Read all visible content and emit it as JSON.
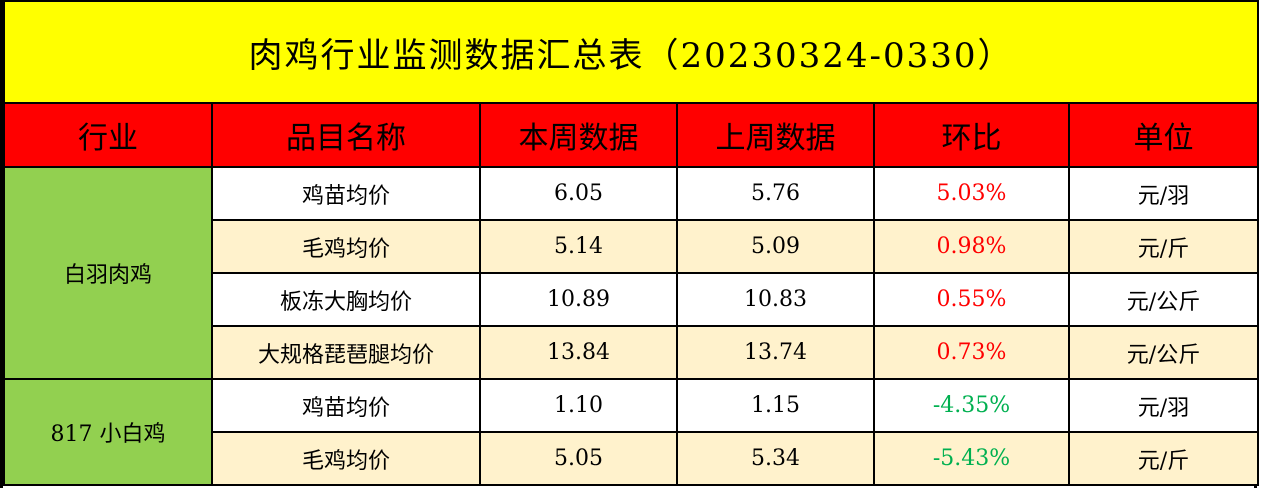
{
  "title": "肉鸡行业监测数据汇总表（20230324-0330）",
  "headers": [
    "行业",
    "品目名称",
    "本周数据",
    "上周数据",
    "环比",
    "单位"
  ],
  "colors": {
    "title_bg": "#FFFF00",
    "header_bg": "#FF0000",
    "industry_bg": "#92D050",
    "alt_row_bg": "#FFF2CC",
    "positive": "#FF0000",
    "negative": "#00B050"
  },
  "groups": [
    {
      "industry": "白羽肉鸡",
      "rows": [
        {
          "item": "鸡苗均价",
          "this_week": "6.05",
          "last_week": "5.76",
          "change": "5.03%",
          "unit": "元/羽"
        },
        {
          "item": "毛鸡均价",
          "this_week": "5.14",
          "last_week": "5.09",
          "change": "0.98%",
          "unit": "元/斤"
        },
        {
          "item": "板冻大胸均价",
          "this_week": "10.89",
          "last_week": "10.83",
          "change": "0.55%",
          "unit": "元/公斤"
        },
        {
          "item": "大规格琵琶腿均价",
          "this_week": "13.84",
          "last_week": "13.74",
          "change": "0.73%",
          "unit": "元/公斤"
        }
      ]
    },
    {
      "industry": "817 小白鸡",
      "rows": [
        {
          "item": "鸡苗均价",
          "this_week": "1.10",
          "last_week": "1.15",
          "change": "-4.35%",
          "unit": "元/羽"
        },
        {
          "item": "毛鸡均价",
          "this_week": "5.05",
          "last_week": "5.34",
          "change": "-5.43%",
          "unit": "元/斤"
        }
      ]
    }
  ]
}
